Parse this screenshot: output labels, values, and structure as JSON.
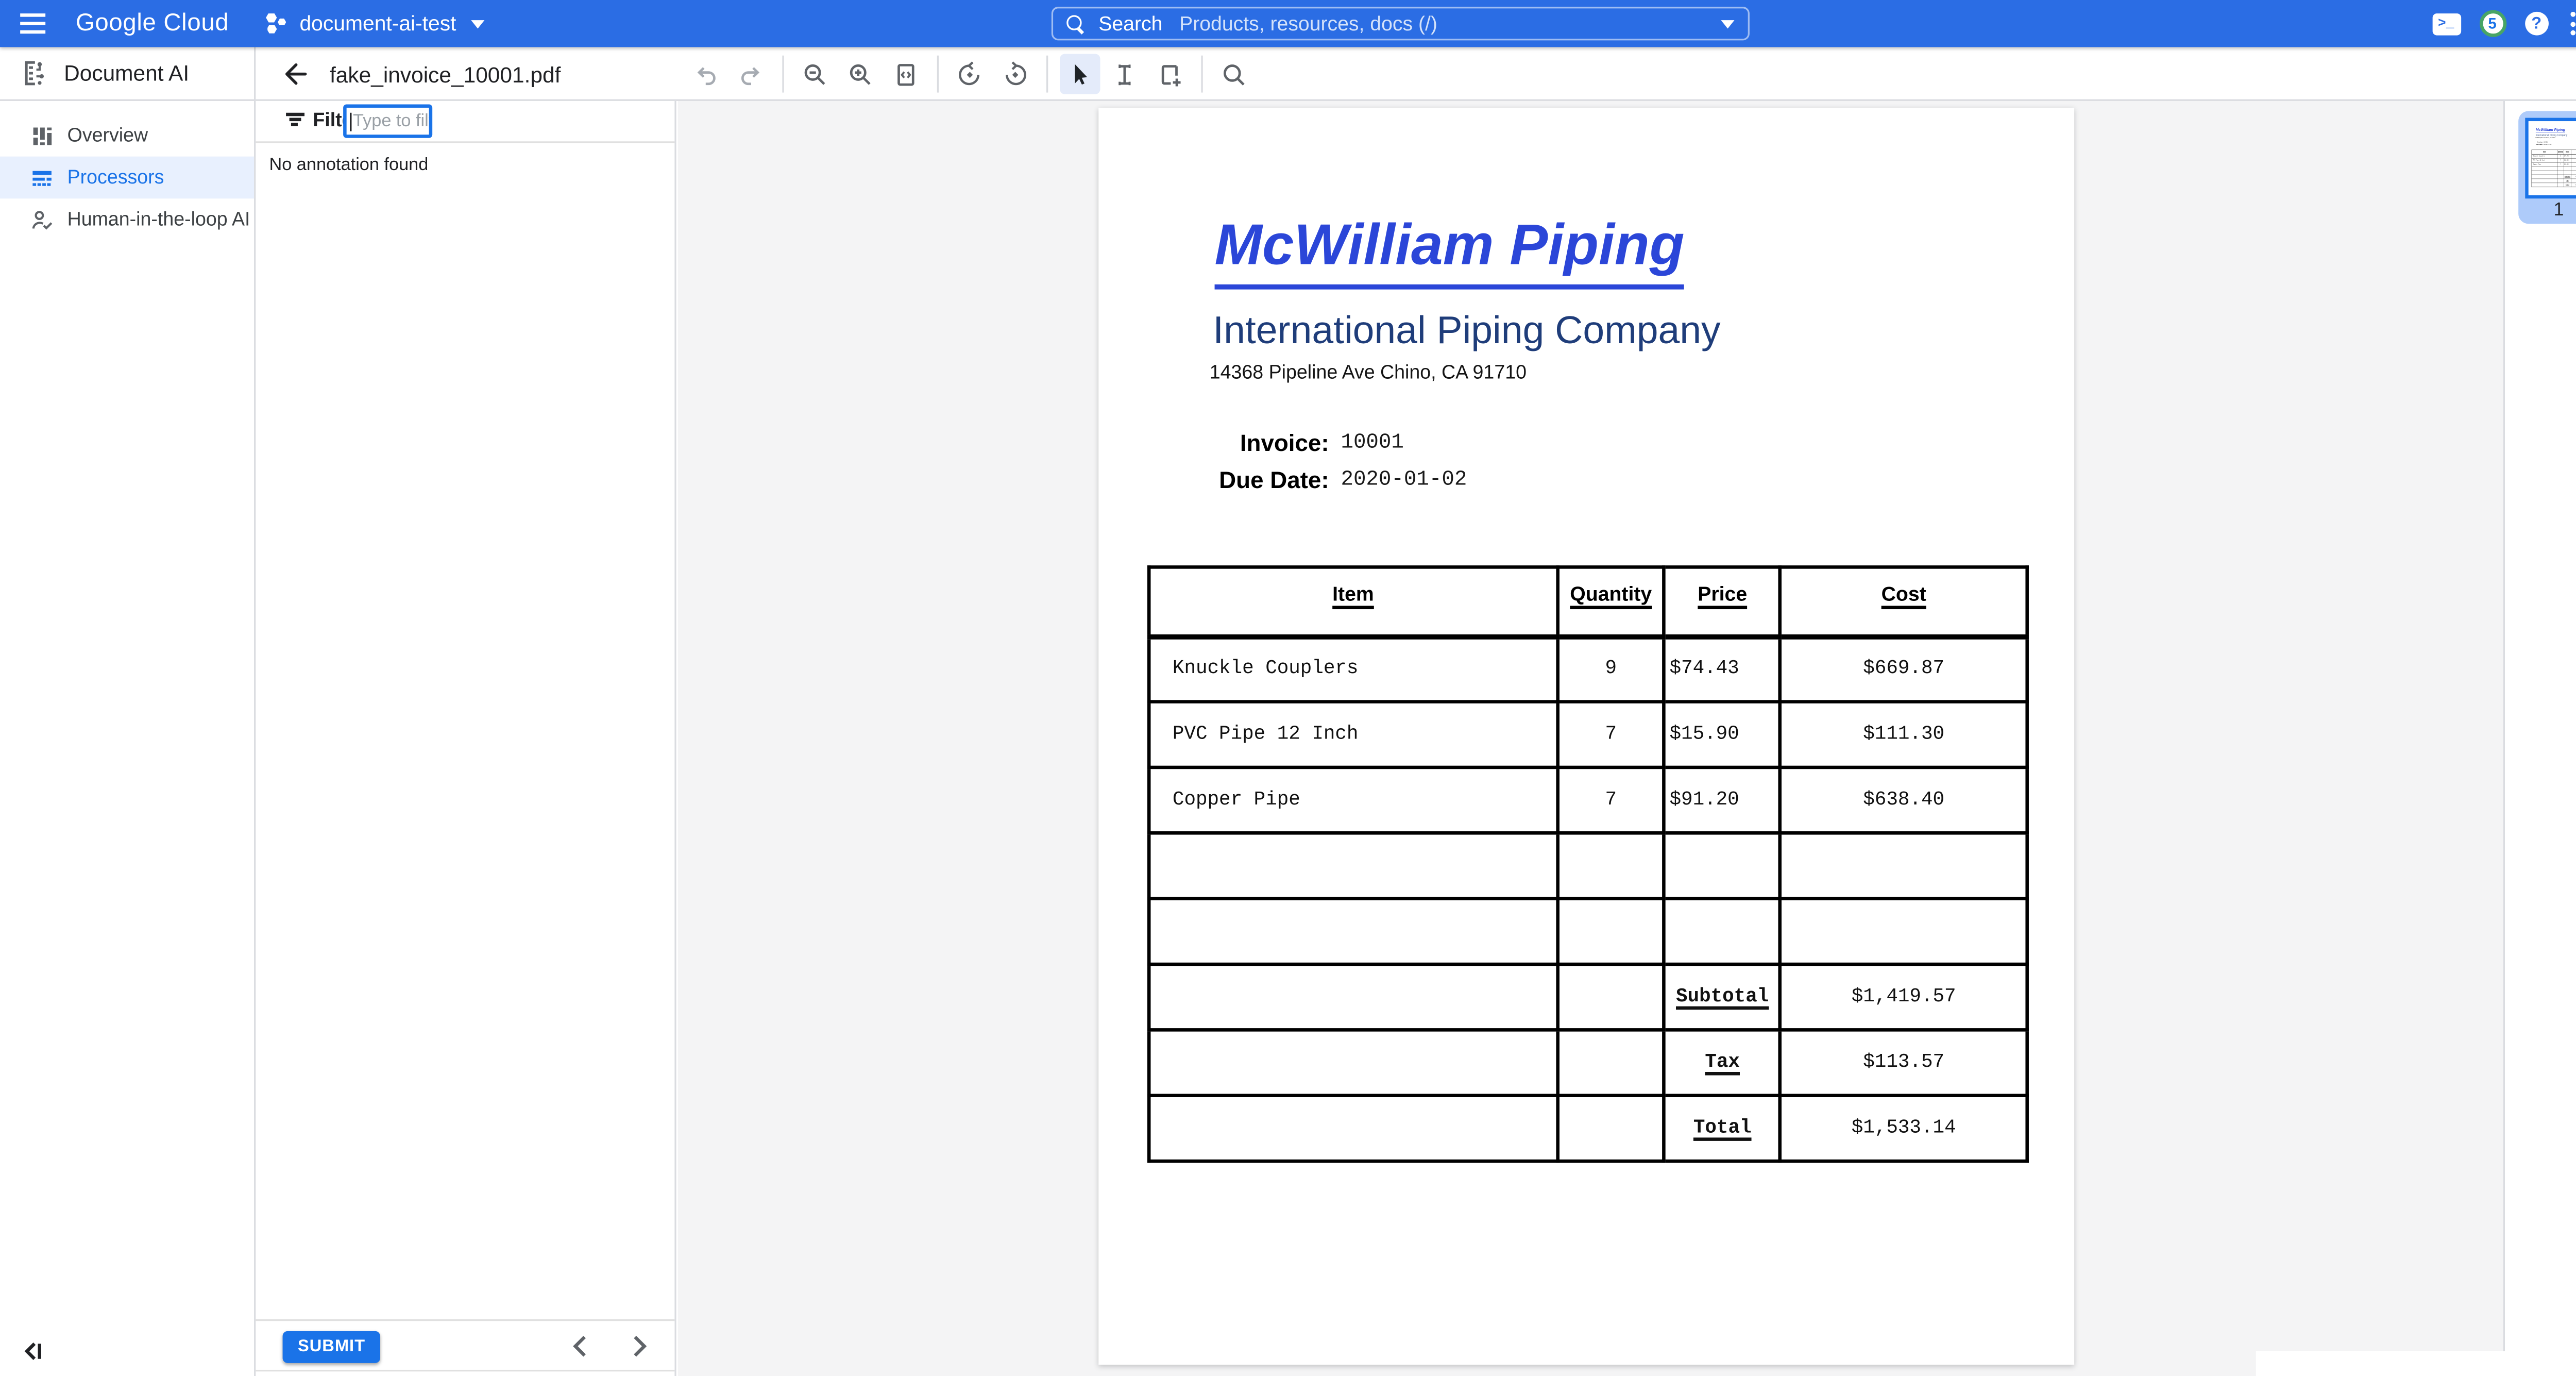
{
  "topbar": {
    "product_name": "Google Cloud",
    "project_name": "document-ai-test",
    "search_label": "Search",
    "search_placeholder": "Products, resources, docs (/)",
    "notification_count": "5",
    "help_glyph": "?",
    "shell_glyph": ">_"
  },
  "sidebar": {
    "title": "Document AI",
    "items": [
      {
        "label": "Overview",
        "active": false
      },
      {
        "label": "Processors",
        "active": true
      },
      {
        "label": "Human-in-the-loop AI",
        "active": false
      }
    ]
  },
  "doc_header": {
    "filename": "fake_invoice_10001.pdf"
  },
  "annotation_panel": {
    "filter_label": "Filter",
    "filter_placeholder": "Type to filter",
    "empty_message": "No annotation found",
    "submit_label": "SUBMIT"
  },
  "invoice": {
    "company": "McWilliam Piping",
    "subtitle": "International Piping Company",
    "address": "14368 Pipeline Ave Chino, CA 91710",
    "fields": [
      {
        "label": "Invoice:",
        "value": "10001"
      },
      {
        "label": "Due Date:",
        "value": "2020-01-02"
      }
    ],
    "table": {
      "headers": [
        "Item",
        "Quantity",
        "Price",
        "Cost"
      ],
      "col_widths_pct": [
        46.5,
        12.2,
        13.2,
        28.1
      ],
      "rows": [
        [
          "Knuckle Couplers",
          "9",
          "$74.43",
          "$669.87"
        ],
        [
          "PVC Pipe 12 Inch",
          "7",
          "$15.90",
          "$111.30"
        ],
        [
          "Copper Pipe",
          "7",
          "$91.20",
          "$638.40"
        ],
        [
          "",
          "",
          "",
          ""
        ],
        [
          "",
          "",
          "",
          ""
        ],
        [
          "",
          "",
          "Subtotal",
          "$1,419.57"
        ],
        [
          "",
          "",
          "Tax",
          "$113.57"
        ],
        [
          "",
          "",
          "Total",
          "$1,533.14"
        ]
      ]
    }
  },
  "thumbnails": {
    "page_label": "1"
  },
  "colors": {
    "topbar_blue": "#2b6de4",
    "accent_blue": "#1a73e8",
    "active_item_bg": "#e8f0fe",
    "invoice_title_blue": "#2b46d8",
    "invoice_subtitle_navy": "#1f3d7a",
    "thumbnail_selected_bg": "#aecbfa",
    "notification_ring_green": "#48a566",
    "viewer_bg": "#f4f4f5"
  }
}
